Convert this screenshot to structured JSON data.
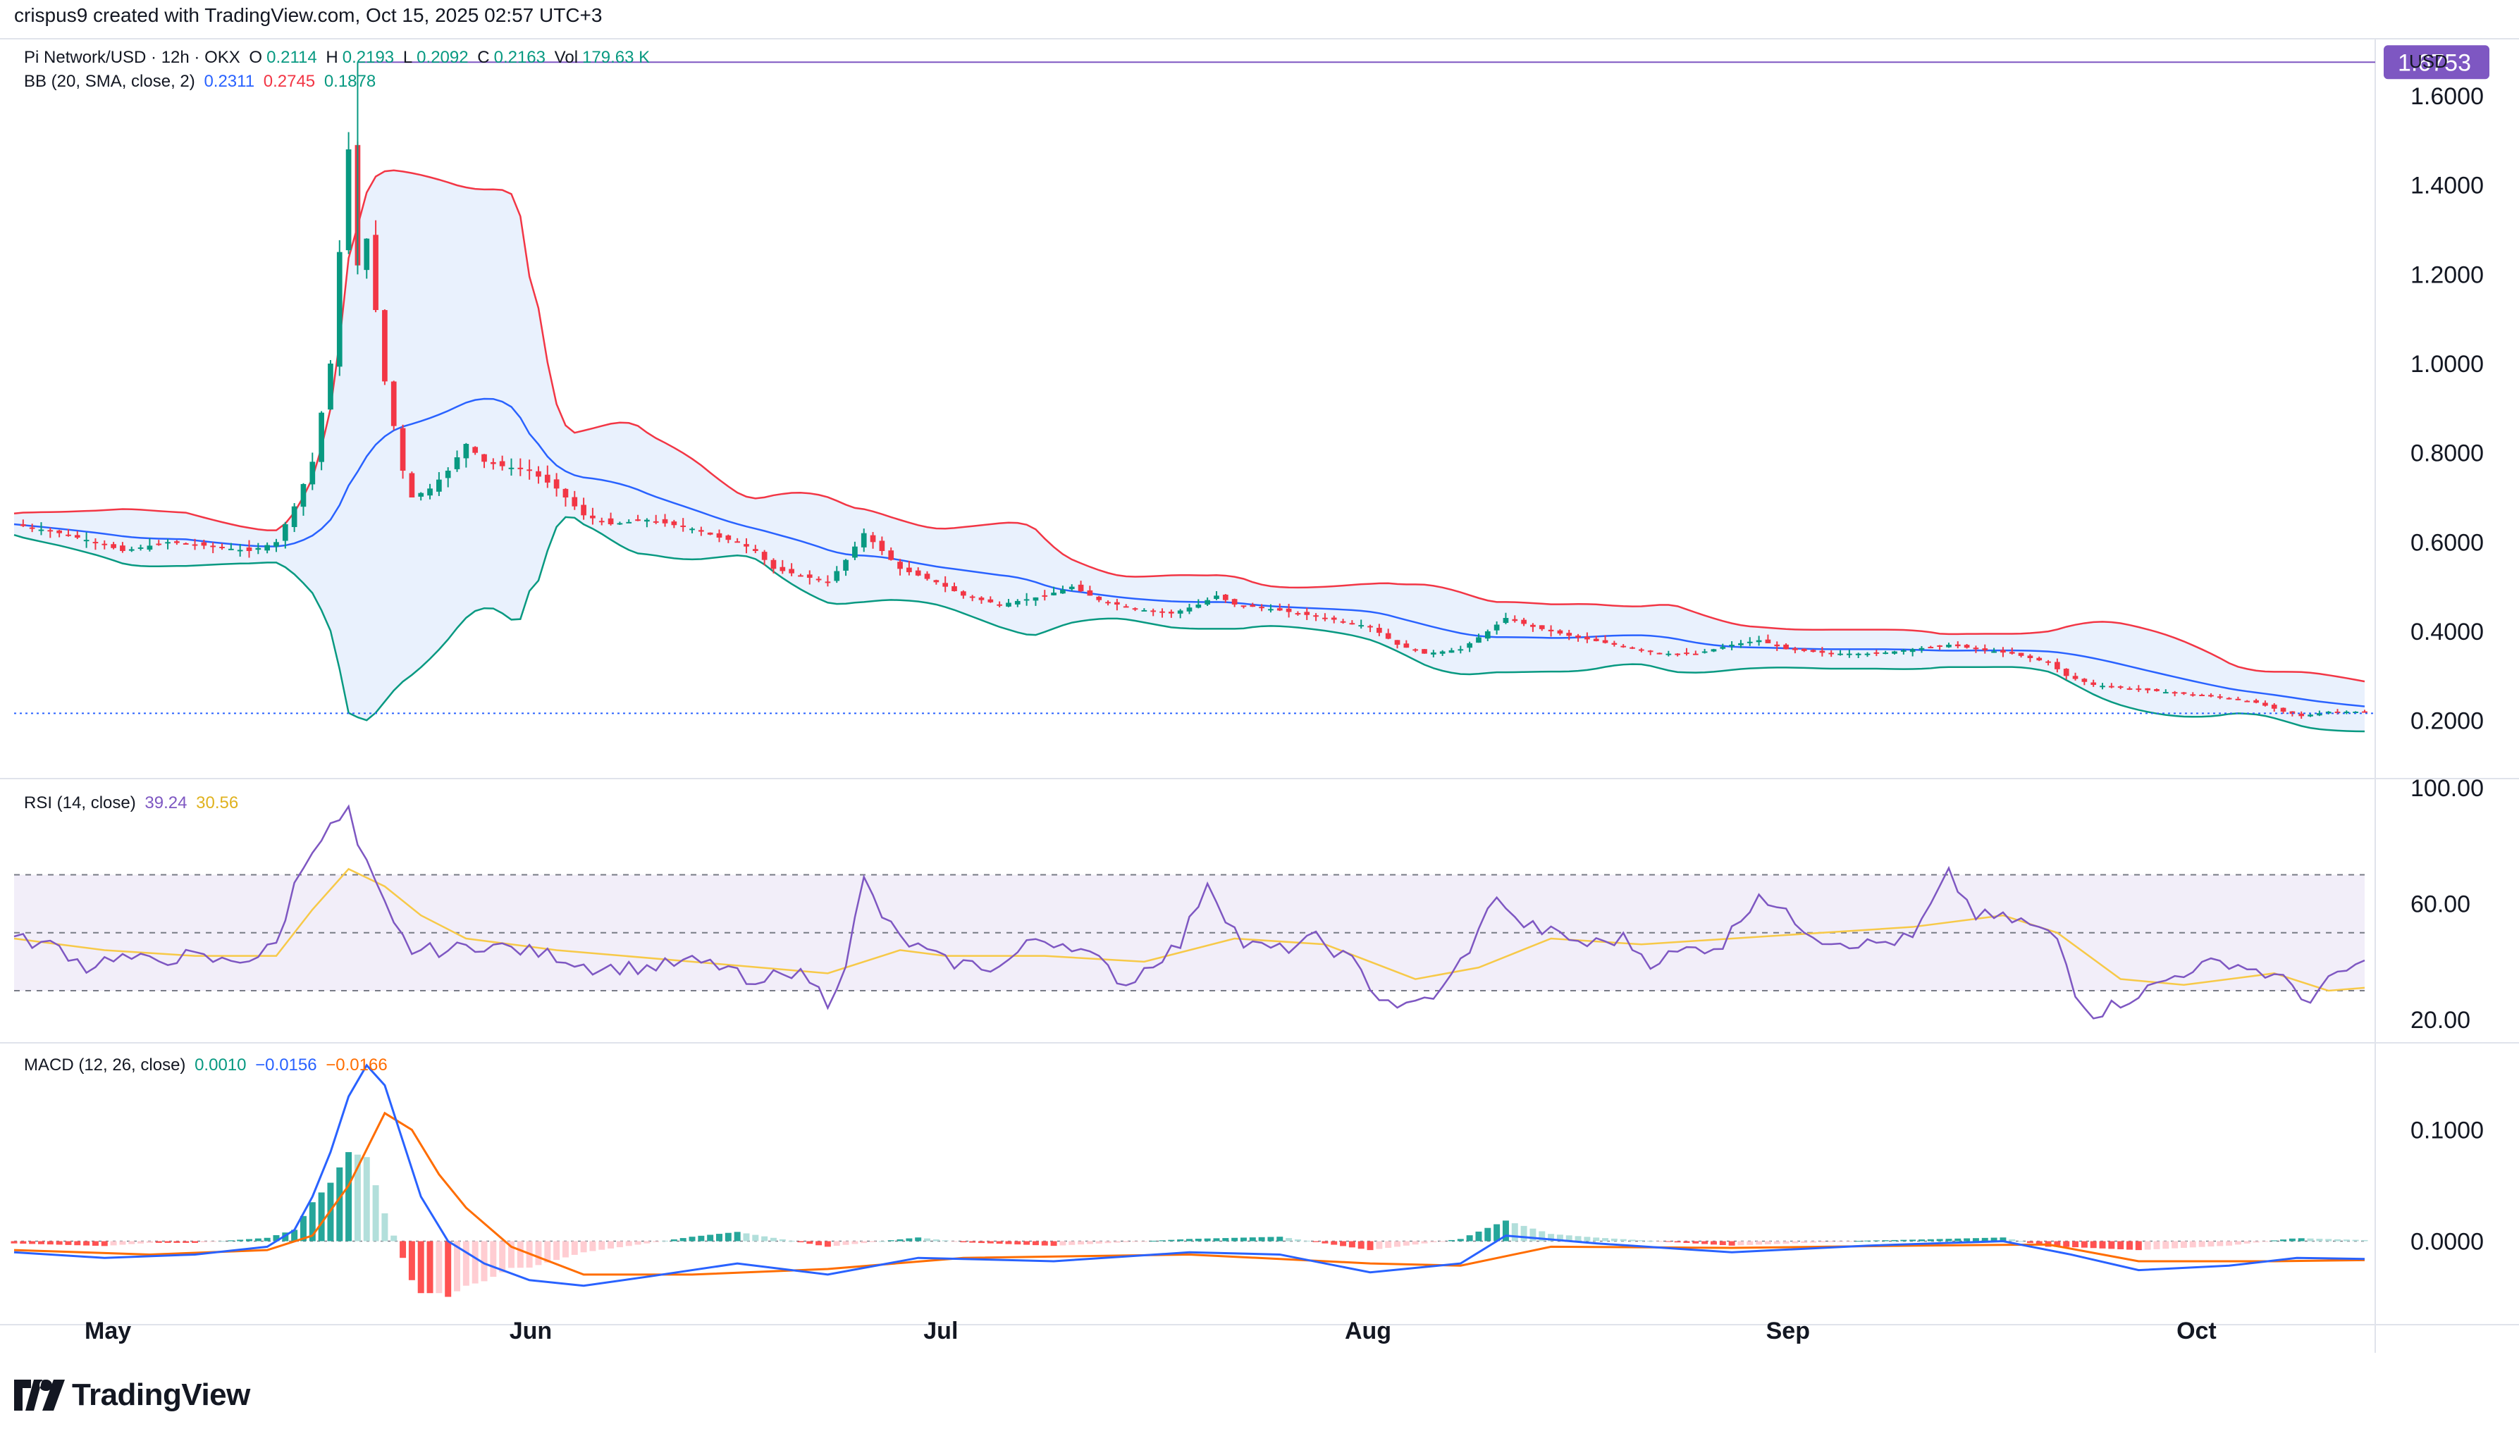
{
  "attribution": "crispus9 created with TradingView.com, Oct 15, 2025 02:57 UTC+3",
  "brand": "TradingView",
  "currency": "USD",
  "price_legend": {
    "symbol": "Pi Network/USD · 12h · OKX",
    "o_label": "O",
    "o": "0.2114",
    "h_label": "H",
    "h": "0.2193",
    "l_label": "L",
    "l": "0.2092",
    "c_label": "C",
    "c": "0.2163",
    "vol_label": "Vol",
    "vol": "179.63 K"
  },
  "bb_legend": {
    "label": "BB (20, SMA, close, 2)",
    "basis": "0.2311",
    "upper": "0.2745",
    "lower": "0.1878"
  },
  "rsi_legend": {
    "label": "RSI (14, close)",
    "rsi": "39.24",
    "ma": "30.56"
  },
  "macd_legend": {
    "label": "MACD (12, 26, close)",
    "hist": "0.0010",
    "macd": "−0.0156",
    "signal": "−0.0166"
  },
  "colors": {
    "up": "#089981",
    "down": "#f23645",
    "bb_basis": "#2962ff",
    "bb_upper": "#f23645",
    "bb_lower": "#089981",
    "bb_fill": "#e3eefc",
    "rsi": "#7e57c2",
    "rsi_ma": "#f7c948",
    "macd": "#2962ff",
    "signal": "#ff6d00",
    "max_marker": "#7e57c2",
    "current_line": "#2962ff"
  },
  "chart_data": [
    {
      "type": "candlestick",
      "ylim": [
        0.07,
        1.72
      ],
      "yticks": [
        "1.6000",
        "1.4000",
        "1.2000",
        "1.0000",
        "0.8000",
        "0.6000",
        "0.4000",
        "0.2000"
      ],
      "x_labels": [
        "May",
        "Jun",
        "Jul",
        "Aug",
        "Sep",
        "Oct"
      ],
      "max_marker": {
        "label": "1.6753",
        "value": 1.6753
      },
      "current_price": 0.2163,
      "close_path": [
        [
          0,
          0.64
        ],
        [
          10,
          0.62
        ],
        [
          18,
          0.6
        ],
        [
          24,
          0.58
        ],
        [
          34,
          0.6
        ],
        [
          44,
          0.59
        ],
        [
          52,
          0.58
        ],
        [
          58,
          0.6
        ],
        [
          62,
          0.68
        ],
        [
          66,
          0.78
        ],
        [
          70,
          1.0
        ],
        [
          72,
          1.25
        ],
        [
          74,
          1.48
        ],
        [
          76,
          1.22
        ],
        [
          78,
          1.28
        ],
        [
          80,
          1.12
        ],
        [
          82,
          0.96
        ],
        [
          84,
          0.86
        ],
        [
          86,
          0.76
        ],
        [
          88,
          0.7
        ],
        [
          92,
          0.72
        ],
        [
          96,
          0.76
        ],
        [
          100,
          0.82
        ],
        [
          104,
          0.78
        ],
        [
          108,
          0.77
        ],
        [
          114,
          0.76
        ],
        [
          120,
          0.72
        ],
        [
          126,
          0.66
        ],
        [
          132,
          0.64
        ],
        [
          140,
          0.65
        ],
        [
          150,
          0.63
        ],
        [
          156,
          0.61
        ],
        [
          160,
          0.6
        ],
        [
          164,
          0.58
        ],
        [
          168,
          0.54
        ],
        [
          176,
          0.52
        ],
        [
          180,
          0.51
        ],
        [
          184,
          0.56
        ],
        [
          188,
          0.62
        ],
        [
          192,
          0.58
        ],
        [
          196,
          0.54
        ],
        [
          204,
          0.51
        ],
        [
          210,
          0.48
        ],
        [
          218,
          0.46
        ],
        [
          228,
          0.48
        ],
        [
          234,
          0.5
        ],
        [
          240,
          0.47
        ],
        [
          248,
          0.45
        ],
        [
          256,
          0.44
        ],
        [
          262,
          0.46
        ],
        [
          266,
          0.48
        ],
        [
          270,
          0.46
        ],
        [
          278,
          0.45
        ],
        [
          290,
          0.43
        ],
        [
          300,
          0.41
        ],
        [
          306,
          0.37
        ],
        [
          312,
          0.35
        ],
        [
          320,
          0.36
        ],
        [
          326,
          0.4
        ],
        [
          330,
          0.43
        ],
        [
          336,
          0.41
        ],
        [
          344,
          0.39
        ],
        [
          354,
          0.37
        ],
        [
          364,
          0.35
        ],
        [
          372,
          0.35
        ],
        [
          380,
          0.37
        ],
        [
          386,
          0.38
        ],
        [
          392,
          0.36
        ],
        [
          402,
          0.35
        ],
        [
          412,
          0.35
        ],
        [
          420,
          0.36
        ],
        [
          428,
          0.37
        ],
        [
          434,
          0.36
        ],
        [
          442,
          0.35
        ],
        [
          450,
          0.33
        ],
        [
          454,
          0.3
        ],
        [
          460,
          0.28
        ],
        [
          470,
          0.27
        ],
        [
          480,
          0.26
        ],
        [
          490,
          0.25
        ],
        [
          496,
          0.24
        ],
        [
          502,
          0.22
        ],
        [
          506,
          0.21
        ],
        [
          512,
          0.22
        ],
        [
          520,
          0.22
        ]
      ]
    },
    {
      "type": "line",
      "title": "RSI (14, close)",
      "ylim": [
        12,
        102
      ],
      "yticks": [
        "100.00",
        "60.00",
        "20.00"
      ],
      "band": [
        30,
        70
      ],
      "rsi_path": [
        [
          0,
          48
        ],
        [
          10,
          45
        ],
        [
          16,
          38
        ],
        [
          22,
          42
        ],
        [
          30,
          40
        ],
        [
          38,
          42
        ],
        [
          46,
          40
        ],
        [
          54,
          42
        ],
        [
          58,
          46
        ],
        [
          62,
          66
        ],
        [
          66,
          80
        ],
        [
          70,
          86
        ],
        [
          74,
          92
        ],
        [
          76,
          80
        ],
        [
          80,
          66
        ],
        [
          84,
          52
        ],
        [
          88,
          44
        ],
        [
          96,
          44
        ],
        [
          104,
          46
        ],
        [
          112,
          44
        ],
        [
          120,
          42
        ],
        [
          128,
          38
        ],
        [
          140,
          38
        ],
        [
          150,
          40
        ],
        [
          158,
          38
        ],
        [
          164,
          30
        ],
        [
          170,
          38
        ],
        [
          176,
          34
        ],
        [
          180,
          26
        ],
        [
          184,
          40
        ],
        [
          188,
          68
        ],
        [
          192,
          56
        ],
        [
          196,
          48
        ],
        [
          206,
          40
        ],
        [
          218,
          38
        ],
        [
          226,
          48
        ],
        [
          234,
          46
        ],
        [
          240,
          40
        ],
        [
          246,
          32
        ],
        [
          252,
          40
        ],
        [
          258,
          46
        ],
        [
          264,
          68
        ],
        [
          268,
          56
        ],
        [
          272,
          46
        ],
        [
          280,
          44
        ],
        [
          288,
          48
        ],
        [
          296,
          40
        ],
        [
          302,
          28
        ],
        [
          308,
          24
        ],
        [
          316,
          30
        ],
        [
          320,
          40
        ],
        [
          324,
          50
        ],
        [
          328,
          64
        ],
        [
          332,
          54
        ],
        [
          340,
          50
        ],
        [
          348,
          46
        ],
        [
          356,
          48
        ],
        [
          362,
          40
        ],
        [
          370,
          44
        ],
        [
          378,
          46
        ],
        [
          386,
          64
        ],
        [
          392,
          56
        ],
        [
          400,
          48
        ],
        [
          410,
          46
        ],
        [
          420,
          48
        ],
        [
          428,
          70
        ],
        [
          434,
          56
        ],
        [
          444,
          54
        ],
        [
          452,
          48
        ],
        [
          456,
          30
        ],
        [
          460,
          22
        ],
        [
          466,
          26
        ],
        [
          474,
          32
        ],
        [
          482,
          38
        ],
        [
          490,
          40
        ],
        [
          498,
          36
        ],
        [
          504,
          32
        ],
        [
          508,
          26
        ],
        [
          514,
          36
        ],
        [
          520,
          39
        ]
      ],
      "ma_path": [
        [
          0,
          48
        ],
        [
          20,
          44
        ],
        [
          40,
          42
        ],
        [
          58,
          42
        ],
        [
          66,
          58
        ],
        [
          74,
          72
        ],
        [
          82,
          66
        ],
        [
          90,
          56
        ],
        [
          100,
          48
        ],
        [
          120,
          44
        ],
        [
          150,
          40
        ],
        [
          180,
          36
        ],
        [
          196,
          44
        ],
        [
          206,
          42
        ],
        [
          228,
          42
        ],
        [
          250,
          40
        ],
        [
          270,
          48
        ],
        [
          290,
          46
        ],
        [
          310,
          34
        ],
        [
          324,
          38
        ],
        [
          340,
          48
        ],
        [
          360,
          46
        ],
        [
          380,
          48
        ],
        [
          400,
          50
        ],
        [
          420,
          52
        ],
        [
          440,
          56
        ],
        [
          452,
          50
        ],
        [
          466,
          34
        ],
        [
          480,
          32
        ],
        [
          500,
          36
        ],
        [
          512,
          30
        ],
        [
          520,
          31
        ]
      ]
    },
    {
      "type": "line",
      "title": "MACD (12, 26, close)",
      "ylim": [
        -0.075,
        0.175
      ],
      "yticks": [
        "0.1000",
        "0.0000"
      ],
      "macd_path": [
        [
          0,
          -0.01
        ],
        [
          20,
          -0.015
        ],
        [
          40,
          -0.012
        ],
        [
          56,
          -0.005
        ],
        [
          62,
          0.01
        ],
        [
          66,
          0.04
        ],
        [
          70,
          0.08
        ],
        [
          74,
          0.13
        ],
        [
          78,
          0.158
        ],
        [
          82,
          0.14
        ],
        [
          86,
          0.09
        ],
        [
          90,
          0.04
        ],
        [
          96,
          0.0
        ],
        [
          104,
          -0.02
        ],
        [
          114,
          -0.035
        ],
        [
          126,
          -0.04
        ],
        [
          140,
          -0.032
        ],
        [
          160,
          -0.02
        ],
        [
          180,
          -0.03
        ],
        [
          200,
          -0.015
        ],
        [
          230,
          -0.018
        ],
        [
          260,
          -0.01
        ],
        [
          280,
          -0.012
        ],
        [
          300,
          -0.028
        ],
        [
          320,
          -0.02
        ],
        [
          330,
          0.005
        ],
        [
          350,
          -0.002
        ],
        [
          380,
          -0.01
        ],
        [
          410,
          -0.004
        ],
        [
          440,
          0.0
        ],
        [
          455,
          -0.012
        ],
        [
          470,
          -0.026
        ],
        [
          490,
          -0.022
        ],
        [
          505,
          -0.015
        ],
        [
          520,
          -0.016
        ]
      ],
      "signal_path": [
        [
          0,
          -0.008
        ],
        [
          30,
          -0.012
        ],
        [
          56,
          -0.008
        ],
        [
          66,
          0.005
        ],
        [
          74,
          0.05
        ],
        [
          82,
          0.115
        ],
        [
          88,
          0.1
        ],
        [
          94,
          0.06
        ],
        [
          100,
          0.03
        ],
        [
          110,
          -0.005
        ],
        [
          126,
          -0.03
        ],
        [
          150,
          -0.03
        ],
        [
          180,
          -0.025
        ],
        [
          210,
          -0.015
        ],
        [
          260,
          -0.012
        ],
        [
          300,
          -0.02
        ],
        [
          320,
          -0.022
        ],
        [
          340,
          -0.005
        ],
        [
          380,
          -0.006
        ],
        [
          420,
          -0.004
        ],
        [
          450,
          -0.003
        ],
        [
          470,
          -0.018
        ],
        [
          500,
          -0.018
        ],
        [
          520,
          -0.017
        ]
      ]
    }
  ]
}
